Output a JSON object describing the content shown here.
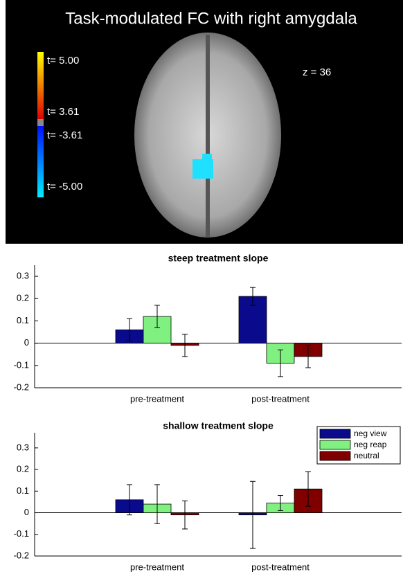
{
  "brain_panel": {
    "title": "Task-modulated FC with right amygdala",
    "slice": "z = 36",
    "colorbar_labels": [
      "t= 5.00",
      "t= 3.61",
      "t= -3.61",
      "t= -5.00"
    ]
  },
  "chart_data": [
    {
      "type": "bar",
      "title": "steep treatment slope",
      "categories": [
        "pre-treatment",
        "post-treatment"
      ],
      "series": [
        {
          "color": "#0a0a8c",
          "values": [
            0.06,
            0.21
          ],
          "errors": [
            0.05,
            0.04
          ]
        },
        {
          "color": "#80f080",
          "values": [
            0.12,
            -0.09
          ],
          "errors": [
            0.05,
            0.06
          ]
        },
        {
          "color": "#800000",
          "values": [
            -0.01,
            -0.06
          ],
          "errors": [
            0.05,
            0.05
          ]
        }
      ],
      "ylim": [
        -0.2,
        0.35
      ],
      "yticks": [
        -0.2,
        -0.1,
        0,
        0.1,
        0.2,
        0.3
      ],
      "legend": false
    },
    {
      "type": "bar",
      "title": "shallow treatment slope",
      "categories": [
        "pre-treatment",
        "post-treatment"
      ],
      "series": [
        {
          "name": "neg view",
          "color": "#0a0a8c",
          "values": [
            0.06,
            -0.01
          ],
          "errors": [
            0.07,
            0.155
          ]
        },
        {
          "name": "neg reap",
          "color": "#80f080",
          "values": [
            0.04,
            0.045
          ],
          "errors": [
            0.09,
            0.035
          ]
        },
        {
          "name": "neutral",
          "color": "#800000",
          "values": [
            -0.01,
            0.11
          ],
          "errors": [
            0.065,
            0.08
          ]
        }
      ],
      "ylim": [
        -0.2,
        0.37
      ],
      "yticks": [
        -0.2,
        -0.1,
        0,
        0.1,
        0.2,
        0.3
      ],
      "legend": "upper right"
    }
  ]
}
